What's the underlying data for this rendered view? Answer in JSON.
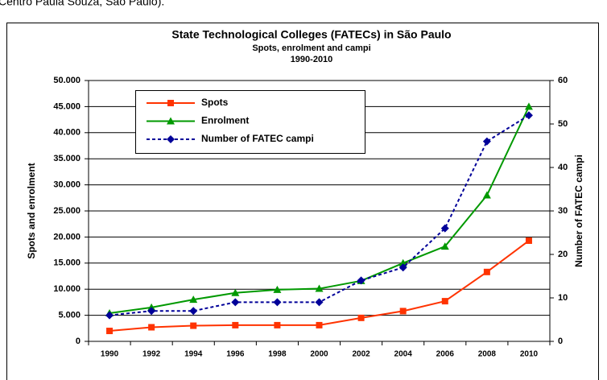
{
  "caption": "Centro Paula Souza, São Paulo).",
  "chart_data": {
    "type": "line",
    "title": "State Technological Colleges (FATECs) in São Paulo",
    "subtitle": "Spots, enrolment and campi",
    "period": "1990-2010",
    "y_label": "Spots and enrolment",
    "y2_label": "Number of FATEC campi",
    "categories": [
      "1990",
      "1992",
      "1994",
      "1996",
      "1998",
      "2000",
      "2002",
      "2004",
      "2006",
      "2008",
      "2010"
    ],
    "series": [
      {
        "name": "Spots",
        "color": "#ff3300",
        "marker": "square",
        "values": [
          2000,
          2700,
          3000,
          3100,
          3100,
          3100,
          4500,
          5800,
          7700,
          13300,
          19300
        ]
      },
      {
        "name": "Enrolment",
        "color": "#009900",
        "marker": "triangle",
        "values": [
          5400,
          6500,
          8000,
          9300,
          9900,
          10100,
          11600,
          15000,
          18200,
          28000,
          45000
        ]
      },
      {
        "name": "Number of FATEC campi",
        "color": "#000099",
        "marker": "diamond",
        "dashed": true,
        "axis": "y2",
        "values": [
          6,
          7,
          7,
          9,
          9,
          9,
          14,
          17,
          26,
          46,
          52
        ]
      }
    ],
    "ylim": [
      0,
      50000
    ],
    "yticks": [
      0,
      {
        "value": 5000,
        "label": "5.000"
      },
      {
        "value": 10000,
        "label": "10.000"
      },
      {
        "value": 15000,
        "label": "15.000"
      },
      {
        "value": 20000,
        "label": "20.000"
      },
      {
        "value": 25000,
        "label": "25.000"
      },
      {
        "value": 30000,
        "label": "30.000"
      },
      {
        "value": 35000,
        "label": "35.000"
      },
      {
        "value": 40000,
        "label": "40.000"
      },
      {
        "value": 45000,
        "label": "45.000"
      },
      {
        "value": 50000,
        "label": "50.000"
      }
    ],
    "y2lim": [
      0,
      60
    ],
    "y2ticks": [
      0,
      10,
      20,
      30,
      40,
      50,
      60
    ],
    "grid": true
  }
}
